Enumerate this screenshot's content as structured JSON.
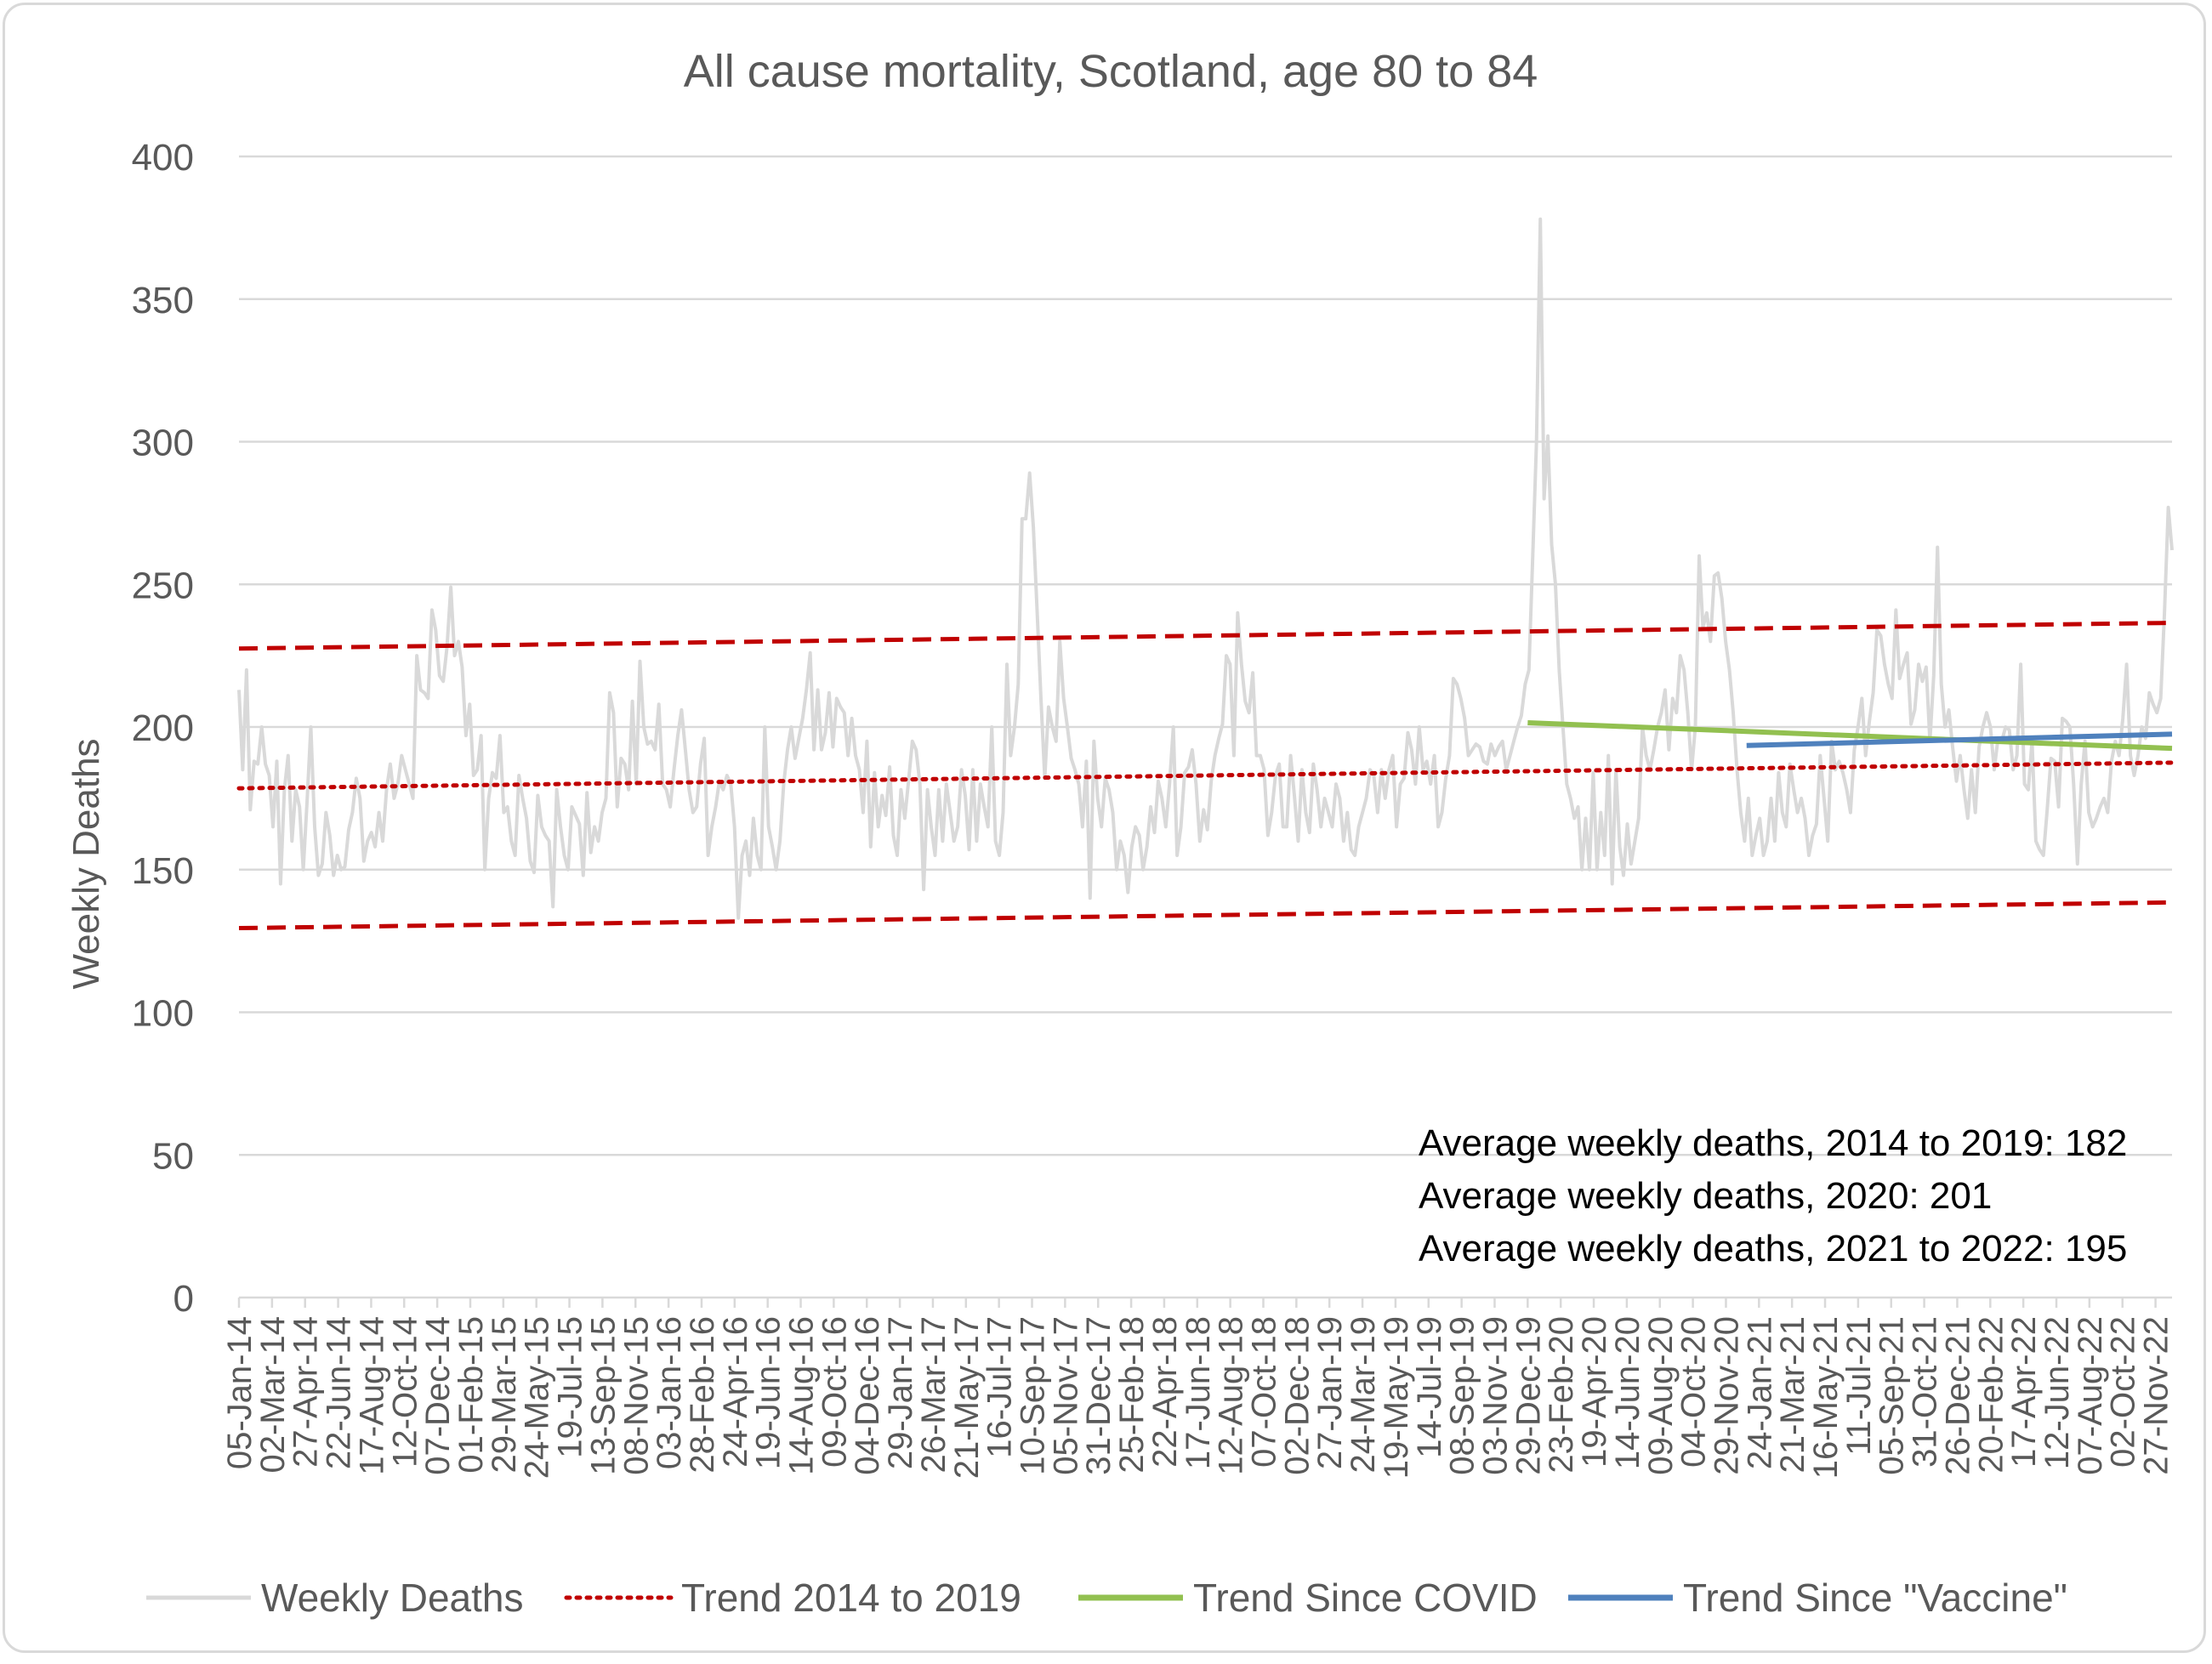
{
  "chart_data": {
    "type": "line",
    "title": "All cause mortality, Scotland, age 80 to 84",
    "ylabel": "Weekly Deaths",
    "xlabel": "",
    "ylim": [
      0,
      400
    ],
    "yticks": [
      0,
      50,
      100,
      150,
      200,
      250,
      300,
      350,
      400
    ],
    "grid": true,
    "legend_position": "bottom",
    "x_start": "05-Jan-14",
    "x_tick_labels": [
      "05-Jan-14",
      "02-Mar-14",
      "27-Apr-14",
      "22-Jun-14",
      "17-Aug-14",
      "12-Oct-14",
      "07-Dec-14",
      "01-Feb-15",
      "29-Mar-15",
      "24-May-15",
      "19-Jul-15",
      "13-Sep-15",
      "08-Nov-15",
      "03-Jan-16",
      "28-Feb-16",
      "24-Apr-16",
      "19-Jun-16",
      "14-Aug-16",
      "09-Oct-16",
      "04-Dec-16",
      "29-Jan-17",
      "26-Mar-17",
      "21-May-17",
      "16-Jul-17",
      "10-Sep-17",
      "05-Nov-17",
      "31-Dec-17",
      "25-Feb-18",
      "22-Apr-18",
      "17-Jun-18",
      "12-Aug-18",
      "07-Oct-18",
      "02-Dec-18",
      "27-Jan-19",
      "24-Mar-19",
      "19-May-19",
      "14-Jul-19",
      "08-Sep-19",
      "03-Nov-19",
      "29-Dec-19",
      "23-Feb-20",
      "19-Apr-20",
      "14-Jun-20",
      "09-Aug-20",
      "04-Oct-20",
      "29-Nov-20",
      "24-Jan-21",
      "21-Mar-21",
      "16-May-21",
      "11-Jul-21",
      "05-Sep-21",
      "31-Oct-21",
      "26-Dec-21",
      "20-Feb-22",
      "17-Apr-22",
      "12-Jun-22",
      "07-Aug-22",
      "02-Oct-22",
      "27-Nov-22"
    ],
    "weekly_deaths_end": "25-Dec-22",
    "series": [
      {
        "name": "Weekly Deaths",
        "color": "#d9d9d9",
        "values": [
          213,
          185,
          220,
          171,
          188,
          187,
          200,
          187,
          183,
          165,
          188,
          145,
          178,
          190,
          160,
          178,
          172,
          150,
          174,
          200,
          165,
          148,
          152,
          170,
          162,
          148,
          155,
          150,
          151,
          164,
          170,
          182,
          175,
          153,
          160,
          163,
          158,
          170,
          160,
          178,
          187,
          175,
          180,
          190,
          185,
          180,
          175,
          225,
          213,
          212,
          210,
          241,
          234,
          218,
          216,
          228,
          249,
          225,
          230,
          221,
          197,
          208,
          183,
          185,
          197,
          150,
          175,
          184,
          182,
          197,
          170,
          172,
          160,
          155,
          183,
          175,
          168,
          153,
          149,
          176,
          165,
          162,
          160,
          137,
          178,
          165,
          155,
          150,
          172,
          169,
          166,
          148,
          177,
          156,
          165,
          160,
          170,
          175,
          212,
          205,
          172,
          189,
          187,
          178,
          209,
          180,
          223,
          200,
          194,
          195,
          192,
          208,
          180,
          178,
          172,
          185,
          197,
          206,
          192,
          178,
          170,
          172,
          187,
          196,
          155,
          165,
          172,
          181,
          178,
          183,
          180,
          165,
          133,
          155,
          160,
          148,
          168,
          155,
          150,
          200,
          165,
          158,
          150,
          160,
          180,
          192,
          200,
          189,
          196,
          203,
          213,
          226,
          192,
          213,
          192,
          198,
          212,
          193,
          210,
          207,
          205,
          190,
          203,
          190,
          185,
          170,
          195,
          158,
          184,
          165,
          176,
          169,
          186,
          162,
          155,
          178,
          168,
          181,
          195,
          192,
          180,
          143,
          178,
          165,
          155,
          178,
          160,
          180,
          170,
          160,
          165,
          185,
          176,
          157,
          185,
          160,
          180,
          172,
          165,
          200,
          160,
          155,
          170,
          222,
          190,
          200,
          215,
          273,
          273,
          289,
          270,
          240,
          210,
          182,
          207,
          200,
          195,
          230,
          210,
          200,
          189,
          185,
          180,
          165,
          188,
          140,
          195,
          175,
          165,
          182,
          178,
          170,
          150,
          160,
          155,
          142,
          158,
          165,
          162,
          150,
          158,
          172,
          163,
          181,
          175,
          165,
          180,
          200,
          155,
          165,
          184,
          186,
          192,
          180,
          160,
          171,
          164,
          181,
          190,
          196,
          201,
          225,
          222,
          190,
          240,
          222,
          209,
          205,
          219,
          190,
          190,
          185,
          162,
          170,
          183,
          187,
          165,
          165,
          190,
          176,
          160,
          185,
          170,
          163,
          187,
          178,
          165,
          175,
          170,
          165,
          180,
          175,
          160,
          170,
          157,
          155,
          165,
          170,
          175,
          185,
          183,
          170,
          185,
          175,
          185,
          190,
          165,
          180,
          182,
          198,
          192,
          180,
          200,
          185,
          188,
          180,
          190,
          165,
          170,
          182,
          190,
          217,
          215,
          210,
          203,
          190,
          192,
          194,
          193,
          188,
          187,
          194,
          190,
          193,
          195,
          185,
          190,
          195,
          200,
          204,
          215,
          220,
          260,
          300,
          378,
          280,
          302,
          264,
          250,
          220,
          200,
          180,
          175,
          168,
          172,
          150,
          168,
          150,
          184,
          150,
          170,
          155,
          190,
          145,
          185,
          158,
          148,
          166,
          152,
          160,
          168,
          200,
          190,
          185,
          192,
          200,
          205,
          213,
          192,
          210,
          205,
          225,
          220,
          205,
          185,
          200,
          260,
          235,
          240,
          230,
          253,
          254,
          245,
          230,
          220,
          205,
          185,
          170,
          160,
          175,
          155,
          162,
          168,
          155,
          160,
          175,
          160,
          184,
          170,
          165,
          187,
          178,
          170,
          175,
          168,
          155,
          162,
          166,
          190,
          175,
          160,
          195,
          185,
          188,
          184,
          178,
          170,
          192,
          200,
          210,
          190,
          202,
          212,
          234,
          232,
          222,
          215,
          210,
          241,
          217,
          222,
          226,
          201,
          206,
          222,
          216,
          221,
          195,
          218,
          263,
          215,
          200,
          206,
          193,
          181,
          190,
          178,
          168,
          185,
          170,
          193,
          200,
          205,
          200,
          185,
          196,
          195,
          200,
          199,
          185,
          190,
          222,
          180,
          178,
          195,
          160,
          157,
          155,
          171,
          189,
          188,
          172,
          203,
          202,
          200,
          180,
          152,
          180,
          195,
          170,
          165,
          168,
          172,
          175,
          170,
          188,
          195,
          190,
          203,
          222,
          190,
          183,
          190,
          200,
          196,
          212,
          208,
          205,
          210,
          240,
          277,
          262
        ]
      },
      {
        "name": "Trend 2014 to 2019",
        "color": "#c00000",
        "style": "dotted",
        "x_range": [
          "05-Jan-14",
          "25-Dec-22"
        ],
        "values": [
          178.5,
          187.5
        ]
      },
      {
        "name": "upper band",
        "color": "#c00000",
        "style": "dashed",
        "legend": false,
        "x_range": [
          "05-Jan-14",
          "25-Dec-22"
        ],
        "values": [
          227.5,
          236.5
        ]
      },
      {
        "name": "lower band",
        "color": "#c00000",
        "style": "dashed",
        "legend": false,
        "x_range": [
          "05-Jan-14",
          "25-Dec-22"
        ],
        "values": [
          129.5,
          138.5
        ]
      },
      {
        "name": "Trend Since COVID",
        "color": "#92c050",
        "style": "solid",
        "x_range": [
          "29-Dec-19",
          "25-Dec-22"
        ],
        "values": [
          201.5,
          192.5
        ]
      },
      {
        "name": "Trend Since \"Vaccine\"",
        "color": "#4f81bd",
        "style": "solid",
        "x_range": [
          "03-Jan-21",
          "25-Dec-22"
        ],
        "values": [
          193.5,
          197.5
        ]
      }
    ],
    "annotations": [
      "Average weekly deaths, 2014 to 2019: 182",
      "Average weekly deaths, 2020: 201",
      "Average weekly deaths, 2021 to 2022: 195"
    ]
  }
}
